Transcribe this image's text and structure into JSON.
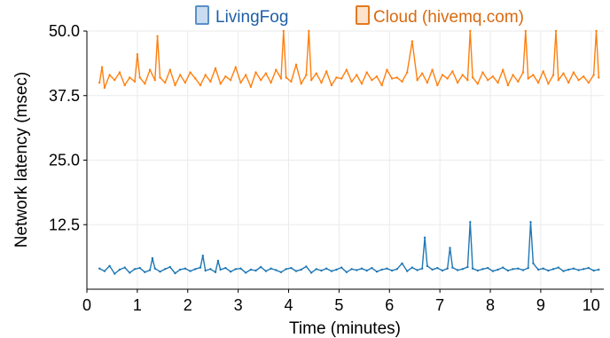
{
  "chart_data": {
    "type": "line",
    "title": "",
    "xlabel": "Time (minutes)",
    "ylabel": "Network latency (msec)",
    "xlim": [
      0,
      10.25
    ],
    "ylim": [
      0,
      50
    ],
    "x_ticks": [
      "0",
      "1",
      "2",
      "3",
      "4",
      "5",
      "6",
      "7",
      "8",
      "9",
      "10"
    ],
    "y_ticks": [
      "12.5",
      "25.0",
      "37.5",
      "50.0"
    ],
    "grid": true,
    "legend_position": "top",
    "series": [
      {
        "name": "LivingFog",
        "color": "#1f77b4",
        "fill": "#c9dcf0",
        "x": [
          0.25,
          0.35,
          0.45,
          0.55,
          0.65,
          0.75,
          0.85,
          0.95,
          1.05,
          1.15,
          1.25,
          1.3,
          1.35,
          1.45,
          1.55,
          1.65,
          1.75,
          1.85,
          1.95,
          2.05,
          2.15,
          2.25,
          2.3,
          2.35,
          2.45,
          2.55,
          2.6,
          2.65,
          2.75,
          2.85,
          2.95,
          3.05,
          3.15,
          3.25,
          3.35,
          3.45,
          3.55,
          3.65,
          3.75,
          3.85,
          3.95,
          4.05,
          4.15,
          4.25,
          4.35,
          4.45,
          4.55,
          4.65,
          4.75,
          4.85,
          4.95,
          5.05,
          5.15,
          5.25,
          5.35,
          5.45,
          5.55,
          5.65,
          5.75,
          5.85,
          5.95,
          6.05,
          6.15,
          6.25,
          6.35,
          6.45,
          6.55,
          6.65,
          6.7,
          6.75,
          6.85,
          6.95,
          7.05,
          7.15,
          7.2,
          7.25,
          7.35,
          7.45,
          7.55,
          7.6,
          7.65,
          7.75,
          7.85,
          7.95,
          8.05,
          8.15,
          8.25,
          8.35,
          8.45,
          8.55,
          8.65,
          8.75,
          8.8,
          8.85,
          8.95,
          9.05,
          9.15,
          9.25,
          9.35,
          9.45,
          9.55,
          9.65,
          9.75,
          9.85,
          9.95,
          10.05,
          10.15
        ],
        "values": [
          4.0,
          3.5,
          4.5,
          3.0,
          3.8,
          4.2,
          3.2,
          3.9,
          4.1,
          3.3,
          3.7,
          6.0,
          4.0,
          3.4,
          3.9,
          4.3,
          3.1,
          3.8,
          4.0,
          3.5,
          3.9,
          4.2,
          6.5,
          3.6,
          3.9,
          3.3,
          5.5,
          3.8,
          4.1,
          3.4,
          3.9,
          4.0,
          3.2,
          3.8,
          3.6,
          4.3,
          3.5,
          4.0,
          3.7,
          3.3,
          3.9,
          4.1,
          3.5,
          3.8,
          4.4,
          3.2,
          3.9,
          3.6,
          4.0,
          3.5,
          3.8,
          4.2,
          3.3,
          3.9,
          3.7,
          4.0,
          3.6,
          4.1,
          3.4,
          3.8,
          4.0,
          3.6,
          3.9,
          5.0,
          3.5,
          4.2,
          3.7,
          4.0,
          10.0,
          4.5,
          3.8,
          4.1,
          3.6,
          4.0,
          8.0,
          4.2,
          3.7,
          3.9,
          4.3,
          13.0,
          4.0,
          3.6,
          3.9,
          4.1,
          3.5,
          3.8,
          4.2,
          3.6,
          3.9,
          4.0,
          3.7,
          4.1,
          13.0,
          5.0,
          3.8,
          4.0,
          3.6,
          3.9,
          4.2,
          3.5,
          3.8,
          4.0,
          3.7,
          3.9,
          4.1,
          3.6,
          3.8
        ]
      },
      {
        "name": "Cloud (hivemq.com)",
        "color": "#ff7f0e",
        "fill": "#fde3cc",
        "x": [
          0.25,
          0.3,
          0.35,
          0.45,
          0.55,
          0.65,
          0.75,
          0.85,
          0.95,
          1.0,
          1.05,
          1.15,
          1.25,
          1.35,
          1.4,
          1.45,
          1.55,
          1.65,
          1.75,
          1.85,
          1.95,
          2.05,
          2.15,
          2.25,
          2.35,
          2.45,
          2.55,
          2.65,
          2.75,
          2.85,
          2.95,
          3.05,
          3.15,
          3.25,
          3.35,
          3.45,
          3.55,
          3.65,
          3.75,
          3.85,
          3.9,
          3.95,
          4.05,
          4.15,
          4.25,
          4.35,
          4.4,
          4.45,
          4.55,
          4.65,
          4.75,
          4.85,
          4.95,
          5.05,
          5.15,
          5.25,
          5.35,
          5.45,
          5.55,
          5.65,
          5.75,
          5.85,
          5.95,
          6.05,
          6.15,
          6.25,
          6.35,
          6.45,
          6.55,
          6.65,
          6.75,
          6.85,
          6.95,
          7.05,
          7.15,
          7.25,
          7.35,
          7.45,
          7.55,
          7.6,
          7.65,
          7.75,
          7.85,
          7.95,
          8.05,
          8.15,
          8.25,
          8.35,
          8.45,
          8.55,
          8.65,
          8.7,
          8.75,
          8.85,
          8.95,
          9.05,
          9.15,
          9.25,
          9.3,
          9.35,
          9.45,
          9.55,
          9.65,
          9.75,
          9.85,
          9.95,
          10.05,
          10.1,
          10.15
        ],
        "values": [
          40.0,
          43.0,
          39.0,
          41.5,
          40.5,
          42.0,
          39.5,
          41.0,
          40.2,
          45.5,
          41.0,
          39.8,
          42.5,
          40.5,
          49.0,
          41.0,
          40.0,
          42.5,
          39.5,
          41.5,
          40.0,
          42.0,
          40.8,
          39.5,
          41.5,
          40.2,
          42.8,
          39.8,
          41.2,
          40.5,
          43.0,
          40.0,
          41.5,
          39.2,
          42.0,
          40.5,
          41.8,
          40.0,
          42.5,
          40.8,
          50.0,
          41.0,
          40.2,
          43.5,
          39.8,
          41.5,
          50.0,
          40.5,
          41.8,
          40.0,
          42.2,
          39.5,
          41.0,
          40.8,
          42.5,
          40.2,
          41.5,
          39.8,
          42.0,
          40.5,
          41.2,
          39.5,
          42.5,
          40.8,
          41.0,
          40.2,
          42.0,
          48.0,
          40.5,
          41.8,
          40.0,
          42.5,
          39.5,
          41.5,
          40.8,
          42.2,
          40.0,
          41.5,
          40.5,
          50.0,
          41.0,
          39.8,
          42.0,
          40.5,
          41.2,
          40.0,
          42.5,
          39.5,
          41.5,
          40.2,
          42.0,
          50.0,
          40.8,
          41.5,
          40.0,
          42.2,
          39.8,
          41.5,
          50.0,
          40.5,
          41.8,
          40.0,
          42.0,
          40.5,
          41.2,
          40.0,
          41.5,
          50.0,
          41.0
        ]
      }
    ]
  }
}
